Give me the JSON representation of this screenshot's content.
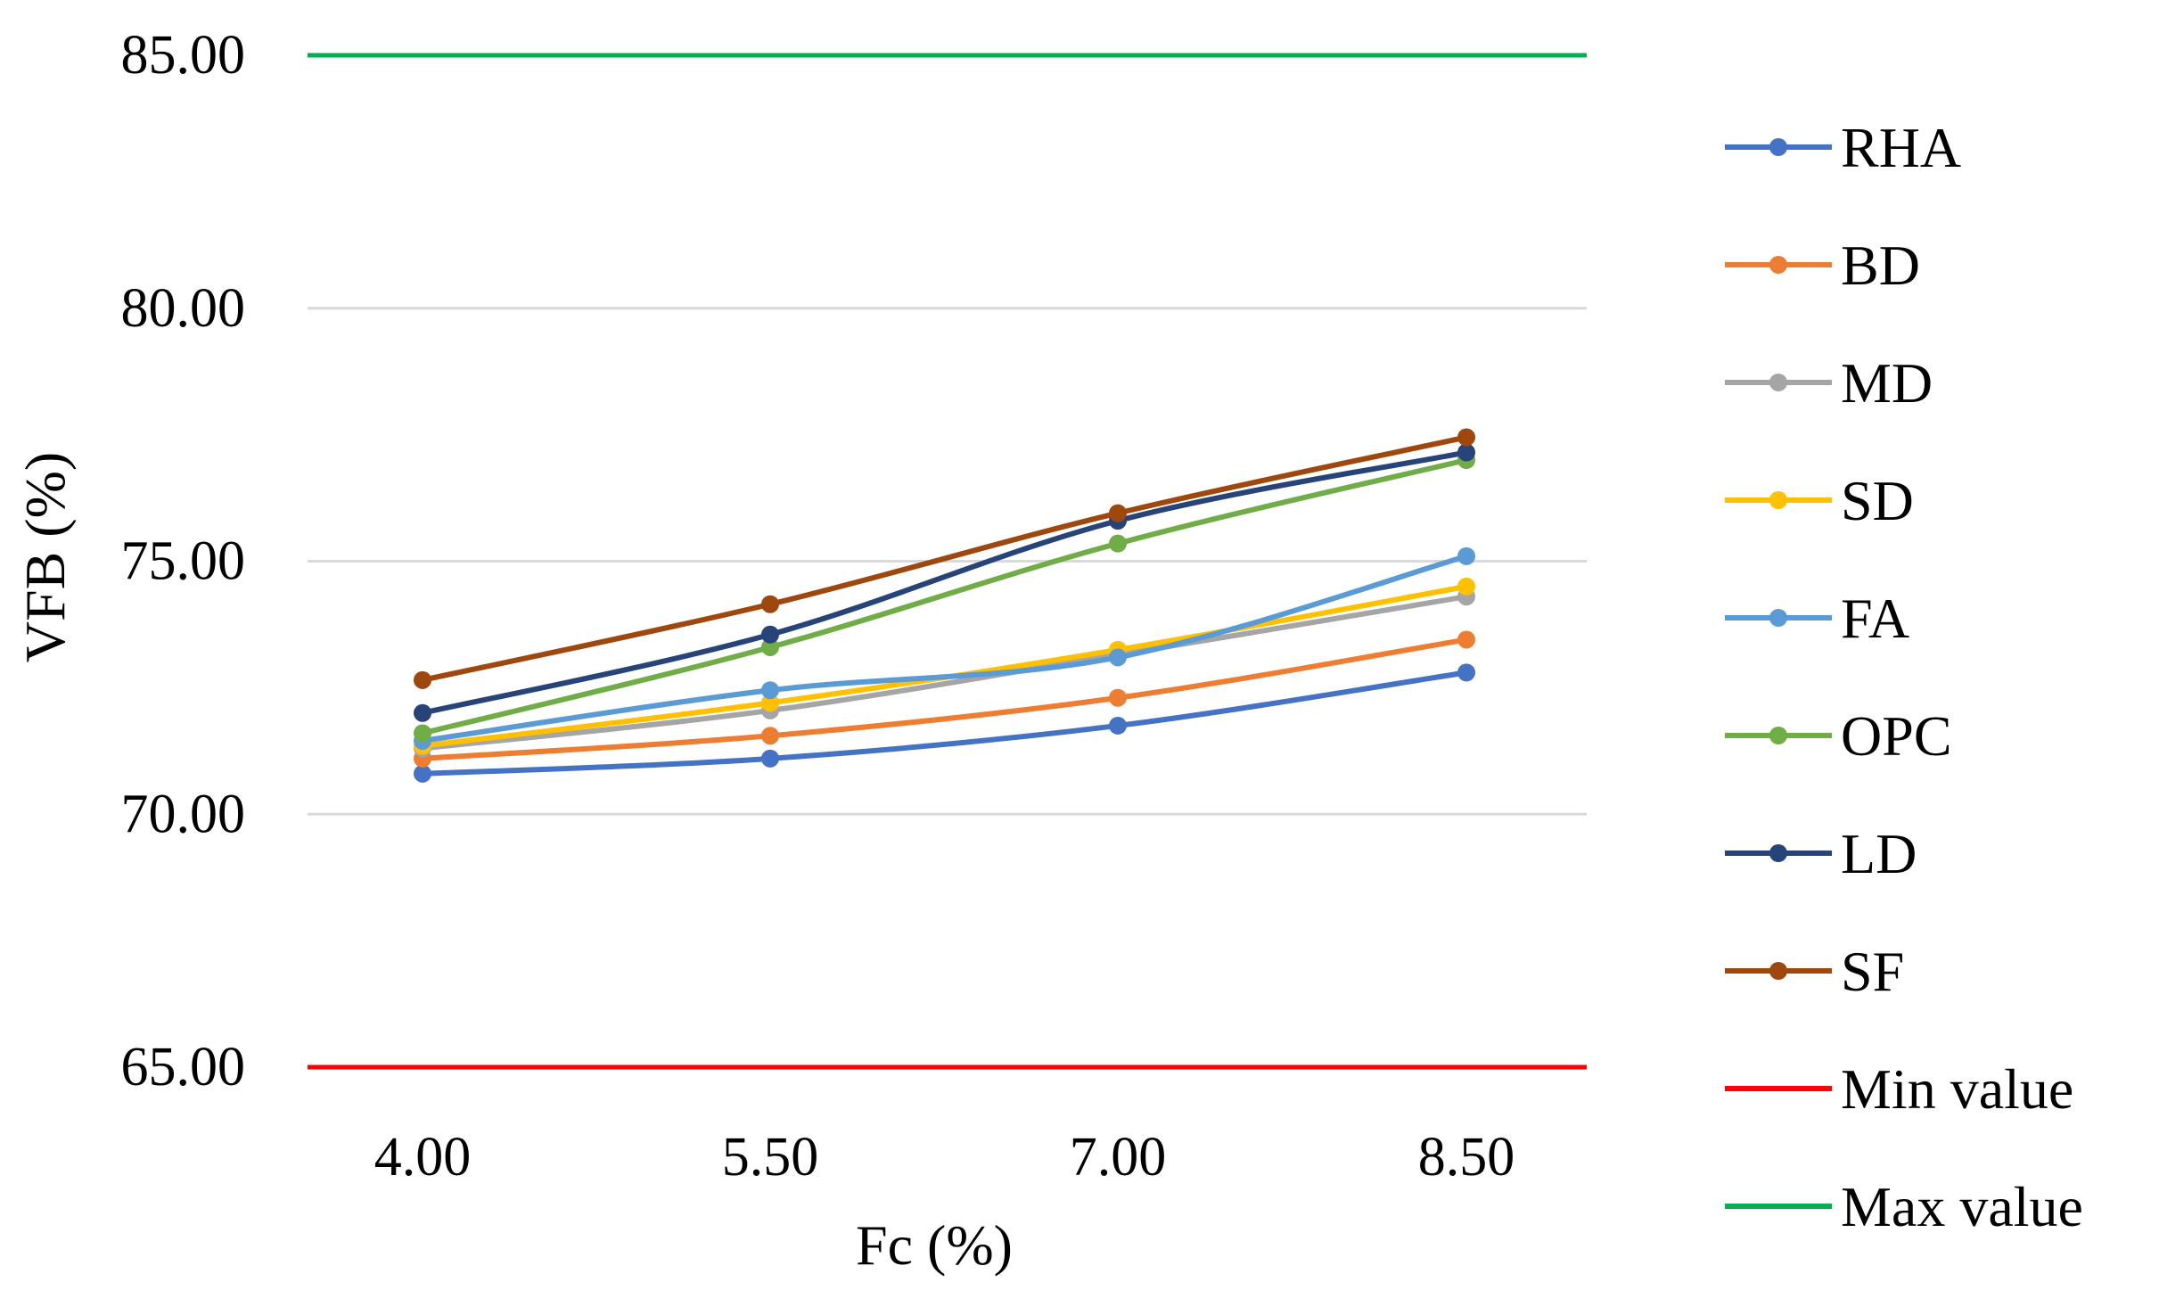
{
  "chart_data": {
    "type": "line",
    "title": "",
    "xlabel": "Fc (%)",
    "ylabel": "VFB (%)",
    "categories": [
      "4.00",
      "5.50",
      "7.00",
      "8.50"
    ],
    "x": [
      4.0,
      5.5,
      7.0,
      8.5
    ],
    "ylim": [
      65,
      85
    ],
    "yticks": [
      "65.00",
      "70.00",
      "75.00",
      "80.00",
      "85.00"
    ],
    "grid": "horizontal",
    "legend_position": "right",
    "series": [
      {
        "name": "RHA",
        "color": "#4472C4",
        "values": [
          70.8,
          71.1,
          71.75,
          72.8
        ],
        "markers": true
      },
      {
        "name": "BD",
        "color": "#ED7D31",
        "values": [
          71.1,
          71.55,
          72.3,
          73.45
        ],
        "markers": true
      },
      {
        "name": "MD",
        "color": "#A5A5A5",
        "values": [
          71.3,
          72.05,
          73.15,
          74.3
        ],
        "markers": true
      },
      {
        "name": "SD",
        "color": "#FFC000",
        "values": [
          71.35,
          72.2,
          73.25,
          74.5
        ],
        "markers": true
      },
      {
        "name": "FA",
        "color": "#5B9BD5",
        "values": [
          71.45,
          72.45,
          73.1,
          75.1
        ],
        "markers": true
      },
      {
        "name": "OPC",
        "color": "#70AD47",
        "values": [
          71.6,
          73.3,
          75.35,
          77.0
        ],
        "markers": true
      },
      {
        "name": "LD",
        "color": "#264478",
        "values": [
          72.0,
          73.55,
          75.8,
          77.15
        ],
        "markers": true
      },
      {
        "name": "SF",
        "color": "#9E480E",
        "values": [
          72.65,
          74.15,
          75.95,
          77.45
        ],
        "markers": true
      }
    ],
    "reference_lines": [
      {
        "name": "Min value",
        "color": "#FF0000",
        "value": 65
      },
      {
        "name": "Max value",
        "color": "#00B050",
        "value": 85
      }
    ]
  }
}
